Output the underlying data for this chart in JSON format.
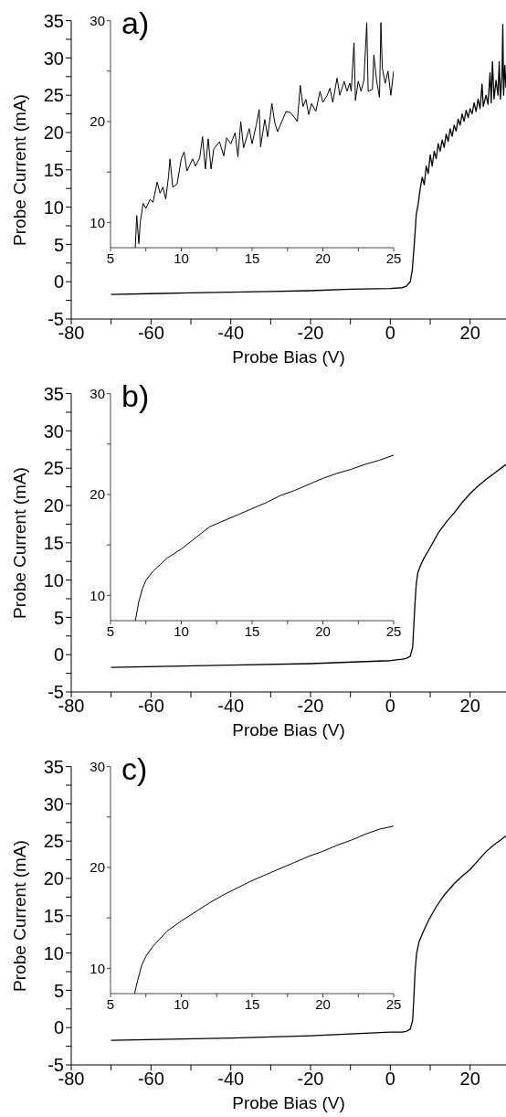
{
  "chart_data": [
    {
      "type": "line",
      "title": "a)",
      "xlabel": "Probe Bias (V)",
      "ylabel": "Probe Current (mA)",
      "color": "#000000",
      "xlim": [
        -80,
        29
      ],
      "ylim": [
        -5,
        35
      ],
      "xticks": [
        -80,
        {
          "value": -70,
          "label": null
        },
        -60,
        {
          "value": -50,
          "label": null
        },
        -40,
        {
          "value": -30,
          "label": null
        },
        -20,
        {
          "value": -10,
          "label": null
        },
        0,
        {
          "value": 10,
          "label": null
        },
        20
      ],
      "yticks": [
        -5,
        {
          "value": -2.5,
          "label": null
        },
        0,
        {
          "value": 2.5,
          "label": null
        },
        5,
        {
          "value": 7.5,
          "label": null
        },
        10,
        {
          "value": 12.5,
          "label": null
        },
        15,
        {
          "value": 17.5,
          "label": null
        },
        20,
        {
          "value": 22.5,
          "label": null
        },
        25,
        {
          "value": 27.5,
          "label": null
        },
        30,
        {
          "value": 32.5,
          "label": null
        },
        35
      ],
      "x": [
        -70,
        -60,
        -50,
        -40,
        -30,
        -20,
        -10,
        0,
        3,
        4,
        5,
        5.5,
        6,
        6.5,
        7,
        7.5,
        8,
        8.5,
        9,
        9.5,
        10,
        10.5,
        11,
        11.5,
        12,
        12.5,
        13,
        13.5,
        14,
        14.5,
        15,
        15.5,
        16,
        16.5,
        17,
        17.5,
        18,
        18.5,
        19,
        19.5,
        20,
        20.5,
        21,
        21.5,
        22,
        22.5,
        23,
        23.3,
        24,
        24.5,
        25,
        25.3,
        25.6,
        26,
        26.5,
        27,
        27.3,
        27.6,
        28,
        28.2,
        28.4,
        28.7,
        29
      ],
      "values": [
        -1.7,
        -1.6,
        -1.5,
        -1.4,
        -1.3,
        -1.2,
        -1.0,
        -0.9,
        -0.8,
        -0.6,
        0,
        1.5,
        5,
        9,
        10.5,
        12.5,
        14,
        13,
        15.5,
        14.5,
        17,
        15.5,
        17.5,
        16.5,
        18.5,
        17.5,
        19,
        18,
        19.8,
        18.8,
        20.5,
        19.5,
        21,
        20.2,
        21.8,
        21,
        22.5,
        21.5,
        23,
        22,
        23.2,
        22.5,
        24,
        22.8,
        24.5,
        23.2,
        26.5,
        23.5,
        25,
        23.8,
        28,
        24,
        29.5,
        24.5,
        27,
        25,
        29.5,
        24.5,
        27.5,
        34.5,
        25,
        29,
        26
      ]
    },
    {
      "type": "line",
      "color": "#000000",
      "xlim": [
        5,
        25
      ],
      "ylim": [
        7.5,
        30
      ],
      "xticks": [
        5,
        {
          "value": 7.5,
          "label": null
        },
        10,
        {
          "value": 12.5,
          "label": null
        },
        15,
        {
          "value": 17.5,
          "label": null
        },
        20,
        {
          "value": 22.5,
          "label": null
        },
        25
      ],
      "yticks": [
        10,
        {
          "value": 15,
          "label": null
        },
        20,
        {
          "value": 25,
          "label": null
        },
        30
      ],
      "x": [
        6.75,
        6.85,
        7.0,
        7.1,
        7.3,
        7.5,
        7.8,
        8.0,
        8.3,
        8.5,
        8.7,
        8.9,
        9.1,
        9.2,
        9.4,
        9.7,
        10.0,
        10.2,
        10.4,
        10.8,
        11.0,
        11.3,
        11.5,
        11.7,
        11.9,
        12.1,
        12.3,
        12.7,
        13.0,
        13.2,
        13.5,
        13.8,
        14.0,
        14.2,
        14.4,
        14.8,
        15.0,
        15.3,
        15.5,
        15.6,
        15.9,
        16.1,
        16.4,
        16.6,
        16.8,
        17.1,
        17.4,
        17.7,
        18.0,
        18.2,
        18.4,
        18.6,
        18.8,
        19.0,
        19.2,
        19.5,
        19.8,
        20.0,
        20.3,
        20.5,
        20.7,
        21.0,
        21.2,
        21.5,
        21.7,
        21.9,
        22.0,
        22.2,
        22.3,
        22.5,
        22.7,
        22.9,
        23.1,
        23.2,
        23.5,
        23.6,
        23.8,
        24.0,
        24.1,
        24.2,
        24.4,
        24.6,
        24.8,
        25.0
      ],
      "values": [
        7.5,
        10.7,
        7.9,
        10,
        11.9,
        11.4,
        12.3,
        12,
        14,
        12.9,
        13.5,
        12.3,
        14.6,
        16.3,
        13.5,
        13.8,
        16.3,
        17,
        15.1,
        16.3,
        15.6,
        16.4,
        18.5,
        15.3,
        18.3,
        15.3,
        17.3,
        18,
        16.6,
        18.4,
        17.8,
        18.9,
        16.5,
        20,
        17.4,
        19.3,
        17.8,
        19.7,
        21.2,
        17.5,
        20.2,
        18.5,
        21.8,
        19.9,
        19,
        20,
        21,
        20.9,
        20.4,
        20,
        23.6,
        21.5,
        22.2,
        20.7,
        21.8,
        21,
        23,
        21.9,
        22.6,
        23.3,
        21.9,
        24.3,
        22.6,
        24,
        23,
        23.8,
        23,
        27.8,
        22.1,
        24,
        23,
        24.1,
        29.8,
        23,
        23.2,
        26.6,
        24,
        22.4,
        29.8,
        25.3,
        23.8,
        25,
        22.6,
        25
      ]
    },
    {
      "type": "line",
      "title": "b)",
      "xlabel": "Probe Bias (V)",
      "ylabel": "Probe Current (mA)",
      "color": "#000000",
      "xlim": [
        -80,
        29
      ],
      "ylim": [
        -5,
        35
      ],
      "xticks": [
        -80,
        {
          "value": -70,
          "label": null
        },
        -60,
        {
          "value": -50,
          "label": null
        },
        -40,
        {
          "value": -30,
          "label": null
        },
        -20,
        {
          "value": -10,
          "label": null
        },
        0,
        {
          "value": 10,
          "label": null
        },
        20
      ],
      "yticks": [
        -5,
        {
          "value": -2.5,
          "label": null
        },
        0,
        {
          "value": 2.5,
          "label": null
        },
        5,
        {
          "value": 7.5,
          "label": null
        },
        10,
        {
          "value": 12.5,
          "label": null
        },
        15,
        {
          "value": 17.5,
          "label": null
        },
        20,
        {
          "value": 22.5,
          "label": null
        },
        25,
        {
          "value": 27.5,
          "label": null
        },
        30,
        {
          "value": 32.5,
          "label": null
        },
        35
      ],
      "x": [
        -70,
        -40,
        -20,
        0,
        3,
        4,
        5,
        5.6,
        5.9,
        6.2,
        6.5,
        6.9,
        7.6,
        8.5,
        9.6,
        12,
        14.2,
        16,
        18,
        20,
        22,
        24,
        26,
        28,
        29
      ],
      "values": [
        -1.7,
        -1.4,
        -1.2,
        -0.8,
        -0.6,
        -0.5,
        -0.2,
        1,
        4,
        7,
        9.5,
        11,
        12,
        13,
        14,
        16.3,
        17.9,
        19,
        20.4,
        21.6,
        22.6,
        23.5,
        24.3,
        25.1,
        25.5
      ]
    },
    {
      "type": "line",
      "color": "#000000",
      "xlim": [
        5,
        25
      ],
      "ylim": [
        7.5,
        30
      ],
      "xticks": [
        5,
        {
          "value": 7.5,
          "label": null
        },
        10,
        {
          "value": 12.5,
          "label": null
        },
        15,
        {
          "value": 17.5,
          "label": null
        },
        20,
        {
          "value": 22.5,
          "label": null
        },
        25
      ],
      "yticks": [
        10,
        {
          "value": 15,
          "label": null
        },
        20,
        {
          "value": 25,
          "label": null
        },
        30
      ],
      "x": [
        6.75,
        6.9,
        7.0,
        7.26,
        7.5,
        8,
        9,
        10,
        11,
        12,
        13,
        14,
        15,
        16,
        17,
        18,
        19,
        20,
        21,
        22,
        23,
        24,
        25
      ],
      "values": [
        7.5,
        8.6,
        9.4,
        10.7,
        11.5,
        12.4,
        13.7,
        14.6,
        15.7,
        16.8,
        17.4,
        18,
        18.6,
        19.2,
        19.9,
        20.4,
        21,
        21.6,
        22.1,
        22.5,
        23,
        23.4,
        23.9
      ]
    },
    {
      "type": "line",
      "title": "c)",
      "xlabel": "Probe Bias (V)",
      "ylabel": "Probe Current (mA)",
      "color": "#000000",
      "xlim": [
        -80,
        29
      ],
      "ylim": [
        -5,
        35
      ],
      "xticks": [
        -80,
        {
          "value": -70,
          "label": null
        },
        -60,
        {
          "value": -50,
          "label": null
        },
        -40,
        {
          "value": -30,
          "label": null
        },
        -20,
        {
          "value": -10,
          "label": null
        },
        0,
        {
          "value": 10,
          "label": null
        },
        20
      ],
      "yticks": [
        -5,
        {
          "value": -2.5,
          "label": null
        },
        0,
        {
          "value": 2.5,
          "label": null
        },
        5,
        {
          "value": 7.5,
          "label": null
        },
        10,
        {
          "value": 12.5,
          "label": null
        },
        15,
        {
          "value": 17.5,
          "label": null
        },
        20,
        {
          "value": 22.5,
          "label": null
        },
        25,
        {
          "value": 27.5,
          "label": null
        },
        30,
        {
          "value": 32.5,
          "label": null
        },
        35
      ],
      "x": [
        -70,
        -40,
        -20,
        0,
        3,
        4,
        5,
        5.6,
        5.9,
        6.2,
        6.6,
        7.2,
        8.2,
        9.6,
        11.5,
        13.4,
        16,
        18,
        20,
        22,
        24,
        26,
        28,
        29
      ],
      "values": [
        -1.7,
        -1.4,
        -1.1,
        -0.6,
        -0.6,
        -0.5,
        -0.2,
        1,
        4,
        7.5,
        10,
        11.5,
        12.8,
        14.4,
        16.2,
        17.7,
        19.3,
        20.3,
        21.2,
        22.4,
        23.6,
        24.5,
        25.3,
        25.7
      ]
    },
    {
      "type": "line",
      "color": "#000000",
      "xlim": [
        5,
        25
      ],
      "ylim": [
        7.5,
        30
      ],
      "xticks": [
        5,
        {
          "value": 7.5,
          "label": null
        },
        10,
        {
          "value": 12.5,
          "label": null
        },
        15,
        {
          "value": 17.5,
          "label": null
        },
        20,
        {
          "value": 22.5,
          "label": null
        },
        25
      ],
      "yticks": [
        10,
        {
          "value": 15,
          "label": null
        },
        20,
        {
          "value": 25,
          "label": null
        },
        30
      ],
      "x": [
        6.7,
        6.9,
        7.2,
        7.5,
        8,
        9,
        10,
        11,
        12,
        13,
        14,
        15,
        16,
        17,
        18,
        19,
        20,
        21,
        22,
        23,
        24,
        25
      ],
      "values": [
        7.5,
        8.7,
        10.3,
        11.2,
        12.2,
        13.7,
        14.7,
        15.6,
        16.5,
        17.3,
        18,
        18.7,
        19.3,
        19.9,
        20.5,
        21.1,
        21.6,
        22.2,
        22.7,
        23.3,
        23.8,
        24.1
      ]
    }
  ]
}
